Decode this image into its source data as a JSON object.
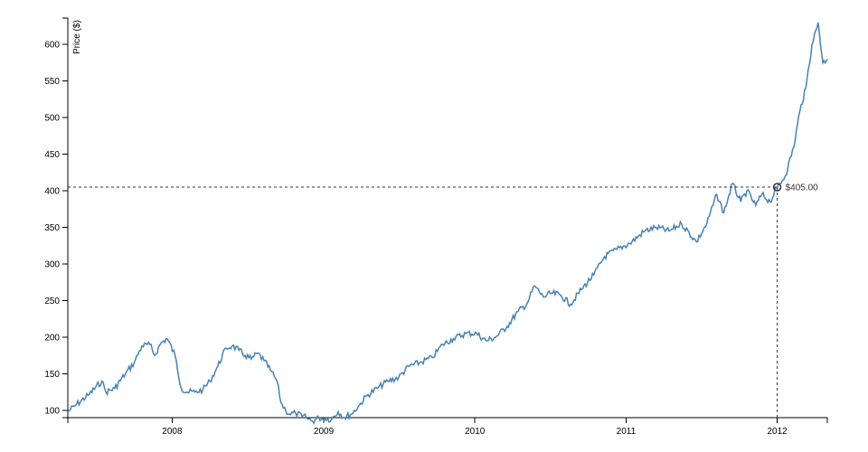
{
  "chart_data": {
    "type": "line",
    "title": "",
    "ylabel": "Price ($)",
    "xlabel": "",
    "x_ticks": [
      "2008",
      "2009",
      "2010",
      "2011",
      "2012"
    ],
    "y_ticks": [
      100,
      150,
      200,
      250,
      300,
      350,
      400,
      450,
      500,
      550,
      600
    ],
    "xlim": [
      "2007-04-24",
      "2012-05-01"
    ],
    "ylim": [
      90,
      636
    ],
    "color": "#4682b4",
    "series": [
      {
        "x": [
          "2007-04-24",
          "2007-05-15",
          "2007-06-15",
          "2007-07-15",
          "2007-07-25",
          "2007-08-15",
          "2007-09-10",
          "2007-10-01",
          "2007-10-20",
          "2007-11-08",
          "2007-11-20",
          "2007-12-05",
          "2007-12-20",
          "2008-01-08",
          "2008-01-23",
          "2008-02-05",
          "2008-02-25",
          "2008-03-15",
          "2008-04-01",
          "2008-04-20",
          "2008-05-10",
          "2008-05-25",
          "2008-06-10",
          "2008-06-25",
          "2008-07-10",
          "2008-07-25",
          "2008-08-10",
          "2008-08-25",
          "2008-09-10",
          "2008-09-20",
          "2008-10-01",
          "2008-10-10",
          "2008-10-25",
          "2008-11-10",
          "2008-11-20",
          "2008-12-05",
          "2008-12-20",
          "2009-01-05",
          "2009-01-20",
          "2009-02-05",
          "2009-02-20",
          "2009-03-09",
          "2009-03-25",
          "2009-04-15",
          "2009-05-10",
          "2009-06-05",
          "2009-07-01",
          "2009-07-25",
          "2009-08-20",
          "2009-09-20",
          "2009-10-15",
          "2009-11-10",
          "2009-12-10",
          "2010-01-05",
          "2010-01-28",
          "2010-02-20",
          "2010-03-20",
          "2010-04-15",
          "2010-05-06",
          "2010-05-25",
          "2010-06-15",
          "2010-07-05",
          "2010-07-25",
          "2010-08-20",
          "2010-09-15",
          "2010-10-15",
          "2010-11-10",
          "2010-12-10",
          "2011-01-10",
          "2011-02-15",
          "2011-03-15",
          "2011-04-15",
          "2011-05-15",
          "2011-06-20",
          "2011-07-15",
          "2011-08-08",
          "2011-08-25",
          "2011-09-15",
          "2011-10-05",
          "2011-10-20",
          "2011-11-10",
          "2011-11-25",
          "2011-12-15",
          "2012-01-01",
          "2012-01-20",
          "2012-02-10",
          "2012-02-25",
          "2012-03-10",
          "2012-03-25",
          "2012-04-09",
          "2012-04-20",
          "2012-05-01"
        ],
        "y": [
          98,
          108,
          122,
          140,
          125,
          130,
          150,
          165,
          188,
          190,
          175,
          192,
          198,
          175,
          130,
          125,
          125,
          128,
          140,
          160,
          185,
          188,
          182,
          175,
          170,
          178,
          168,
          155,
          140,
          110,
          100,
          95,
          96,
          92,
          90,
          85,
          90,
          88,
          88,
          98,
          90,
          95,
          105,
          120,
          130,
          140,
          145,
          160,
          165,
          172,
          190,
          198,
          205,
          205,
          195,
          200,
          215,
          235,
          245,
          270,
          255,
          260,
          258,
          245,
          265,
          285,
          310,
          320,
          328,
          345,
          350,
          345,
          355,
          330,
          355,
          395,
          370,
          410,
          385,
          400,
          380,
          395,
          385,
          405,
          420,
          460,
          510,
          540,
          600,
          630,
          575,
          580
        ]
      }
    ],
    "focus": {
      "label": "$405.00",
      "x": "2012-01-01",
      "y": 405
    }
  }
}
